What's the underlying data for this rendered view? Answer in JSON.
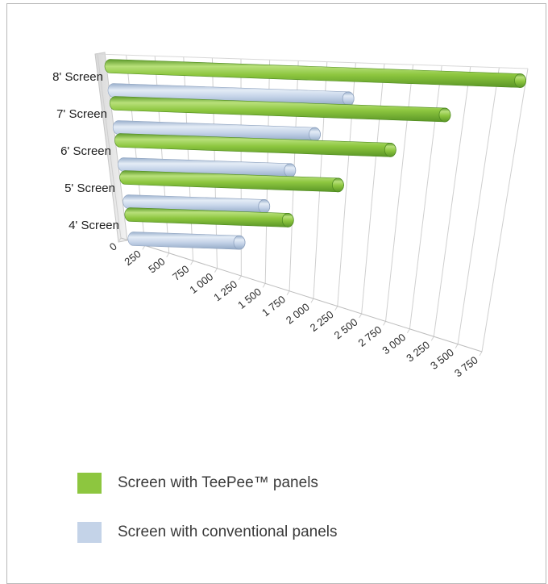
{
  "chart_data": {
    "type": "bar",
    "orientation": "horizontal",
    "style": "3d-cylinder",
    "categories": [
      "8' Screen",
      "7' Screen",
      "6' Screen",
      "5' Screen",
      "4' Screen"
    ],
    "series": [
      {
        "name": "Screen with TeePee™ panels",
        "color": "#8dc63f",
        "values": [
          3720,
          2990,
          2450,
          1930,
          1430
        ]
      },
      {
        "name": "Screen with conventional panels",
        "color": "#c4d3e8",
        "values": [
          2130,
          1780,
          1510,
          1230,
          960
        ]
      }
    ],
    "x_ticks": [
      "0",
      "250",
      "500",
      "750",
      "1 000",
      "1 250",
      "1 500",
      "1 750",
      "2 000",
      "2 250",
      "2 500",
      "2 750",
      "3 000",
      "3 250",
      "3 500",
      "3 750"
    ],
    "xlim": [
      0,
      3750
    ],
    "grid": true,
    "legend_position": "bottom",
    "title": "",
    "xlabel": "",
    "ylabel": ""
  }
}
